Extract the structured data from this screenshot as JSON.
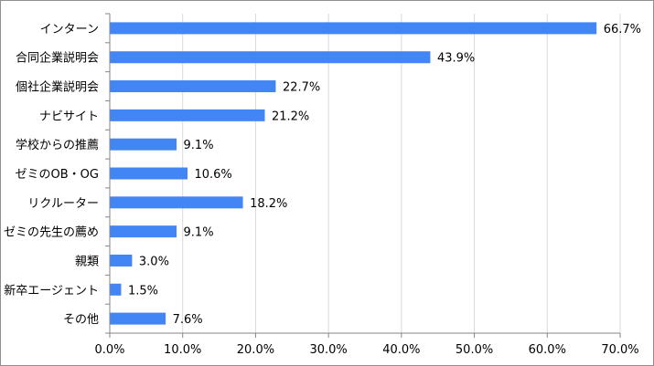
{
  "chart_data": {
    "type": "bar",
    "orientation": "horizontal",
    "categories": [
      "インターン",
      "合同企業説明会",
      "個社企業説明会",
      "ナビサイト",
      "学校からの推薦",
      "ゼミのOB・OG",
      "リクルーター",
      "ゼミの先生の薦め",
      "親類",
      "新卒エージェント",
      "その他"
    ],
    "values": [
      66.7,
      43.9,
      22.7,
      21.2,
      9.1,
      10.6,
      18.2,
      9.1,
      3.0,
      1.5,
      7.6
    ],
    "data_labels": [
      "66.7%",
      "43.9%",
      "22.7%",
      "21.2%",
      "9.1%",
      "10.6%",
      "18.2%",
      "9.1%",
      "3.0%",
      "1.5%",
      "7.6%"
    ],
    "x_ticks": [
      "0.0%",
      "10.0%",
      "20.0%",
      "30.0%",
      "40.0%",
      "50.0%",
      "60.0%",
      "70.0%"
    ],
    "xlim": [
      0,
      70
    ],
    "grid": true,
    "legend": "none",
    "bar_color": "#4285f4",
    "grid_color": "#d9d9d9",
    "axis_color": "#868686"
  }
}
